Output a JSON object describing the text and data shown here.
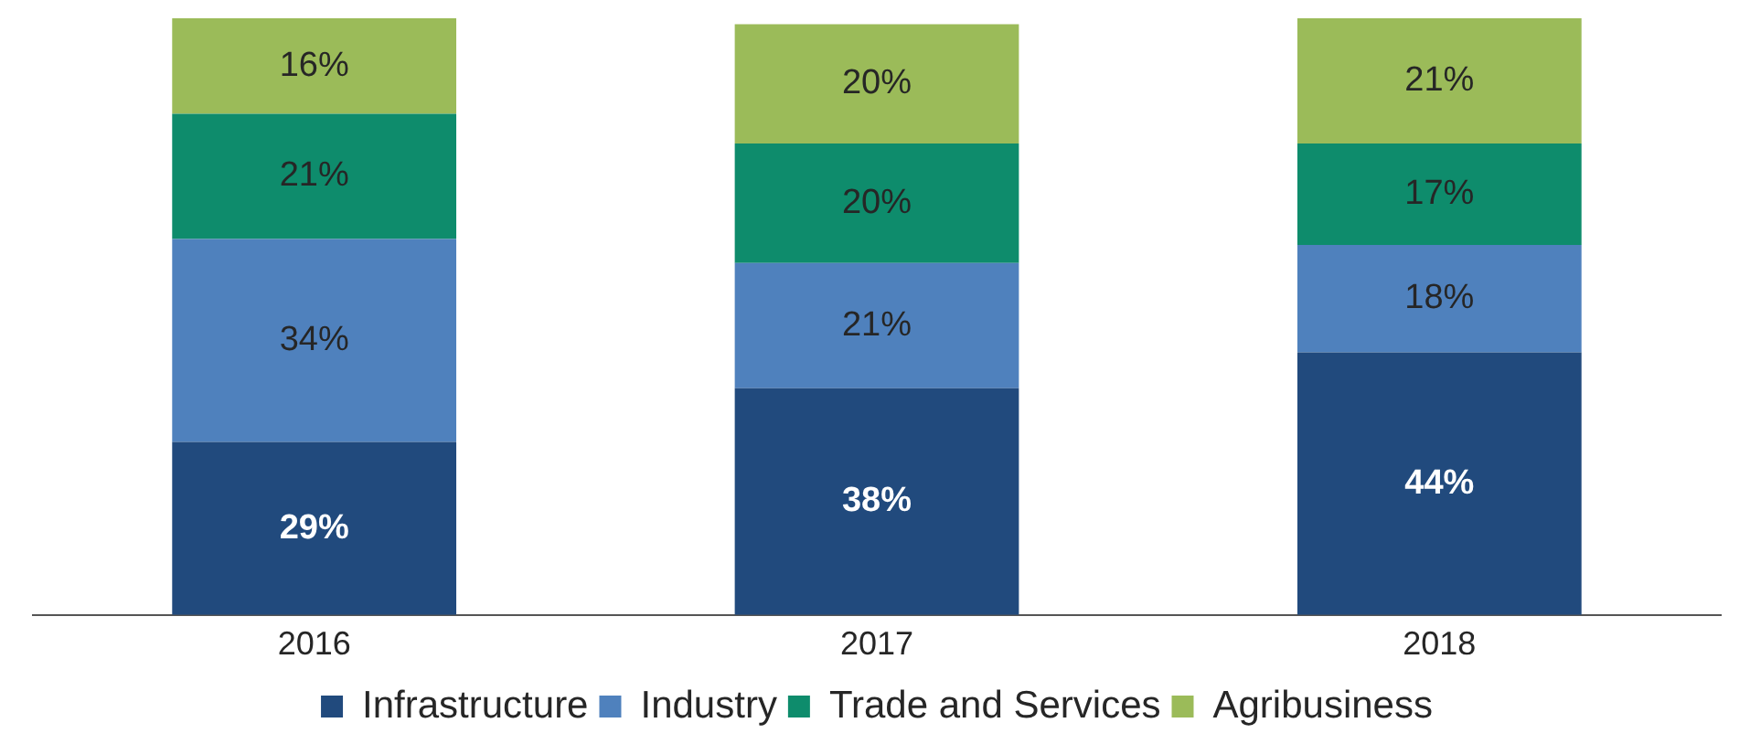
{
  "chart_data": {
    "type": "bar",
    "stacked": true,
    "categories": [
      "2016",
      "2017",
      "2018"
    ],
    "legend": "bottom",
    "grid": false,
    "series": [
      {
        "name": "Infrastructure",
        "color": "#214a7d",
        "values": [
          29,
          38,
          44
        ],
        "value_labels": [
          "29%",
          "38%",
          "44%"
        ]
      },
      {
        "name": "Industry",
        "color": "#4f81bd",
        "values": [
          34,
          21,
          18
        ],
        "value_labels": [
          "34%",
          "21%",
          "18%"
        ]
      },
      {
        "name": "Trade and Services",
        "color": "#0e8c6c",
        "values": [
          21,
          20,
          17
        ],
        "value_labels": [
          "21%",
          "20%",
          "17%"
        ]
      },
      {
        "name": "Agribusiness",
        "color": "#9bbb59",
        "values": [
          16,
          20,
          21
        ],
        "value_labels": [
          "16%",
          "20%",
          "21%"
        ]
      }
    ]
  }
}
